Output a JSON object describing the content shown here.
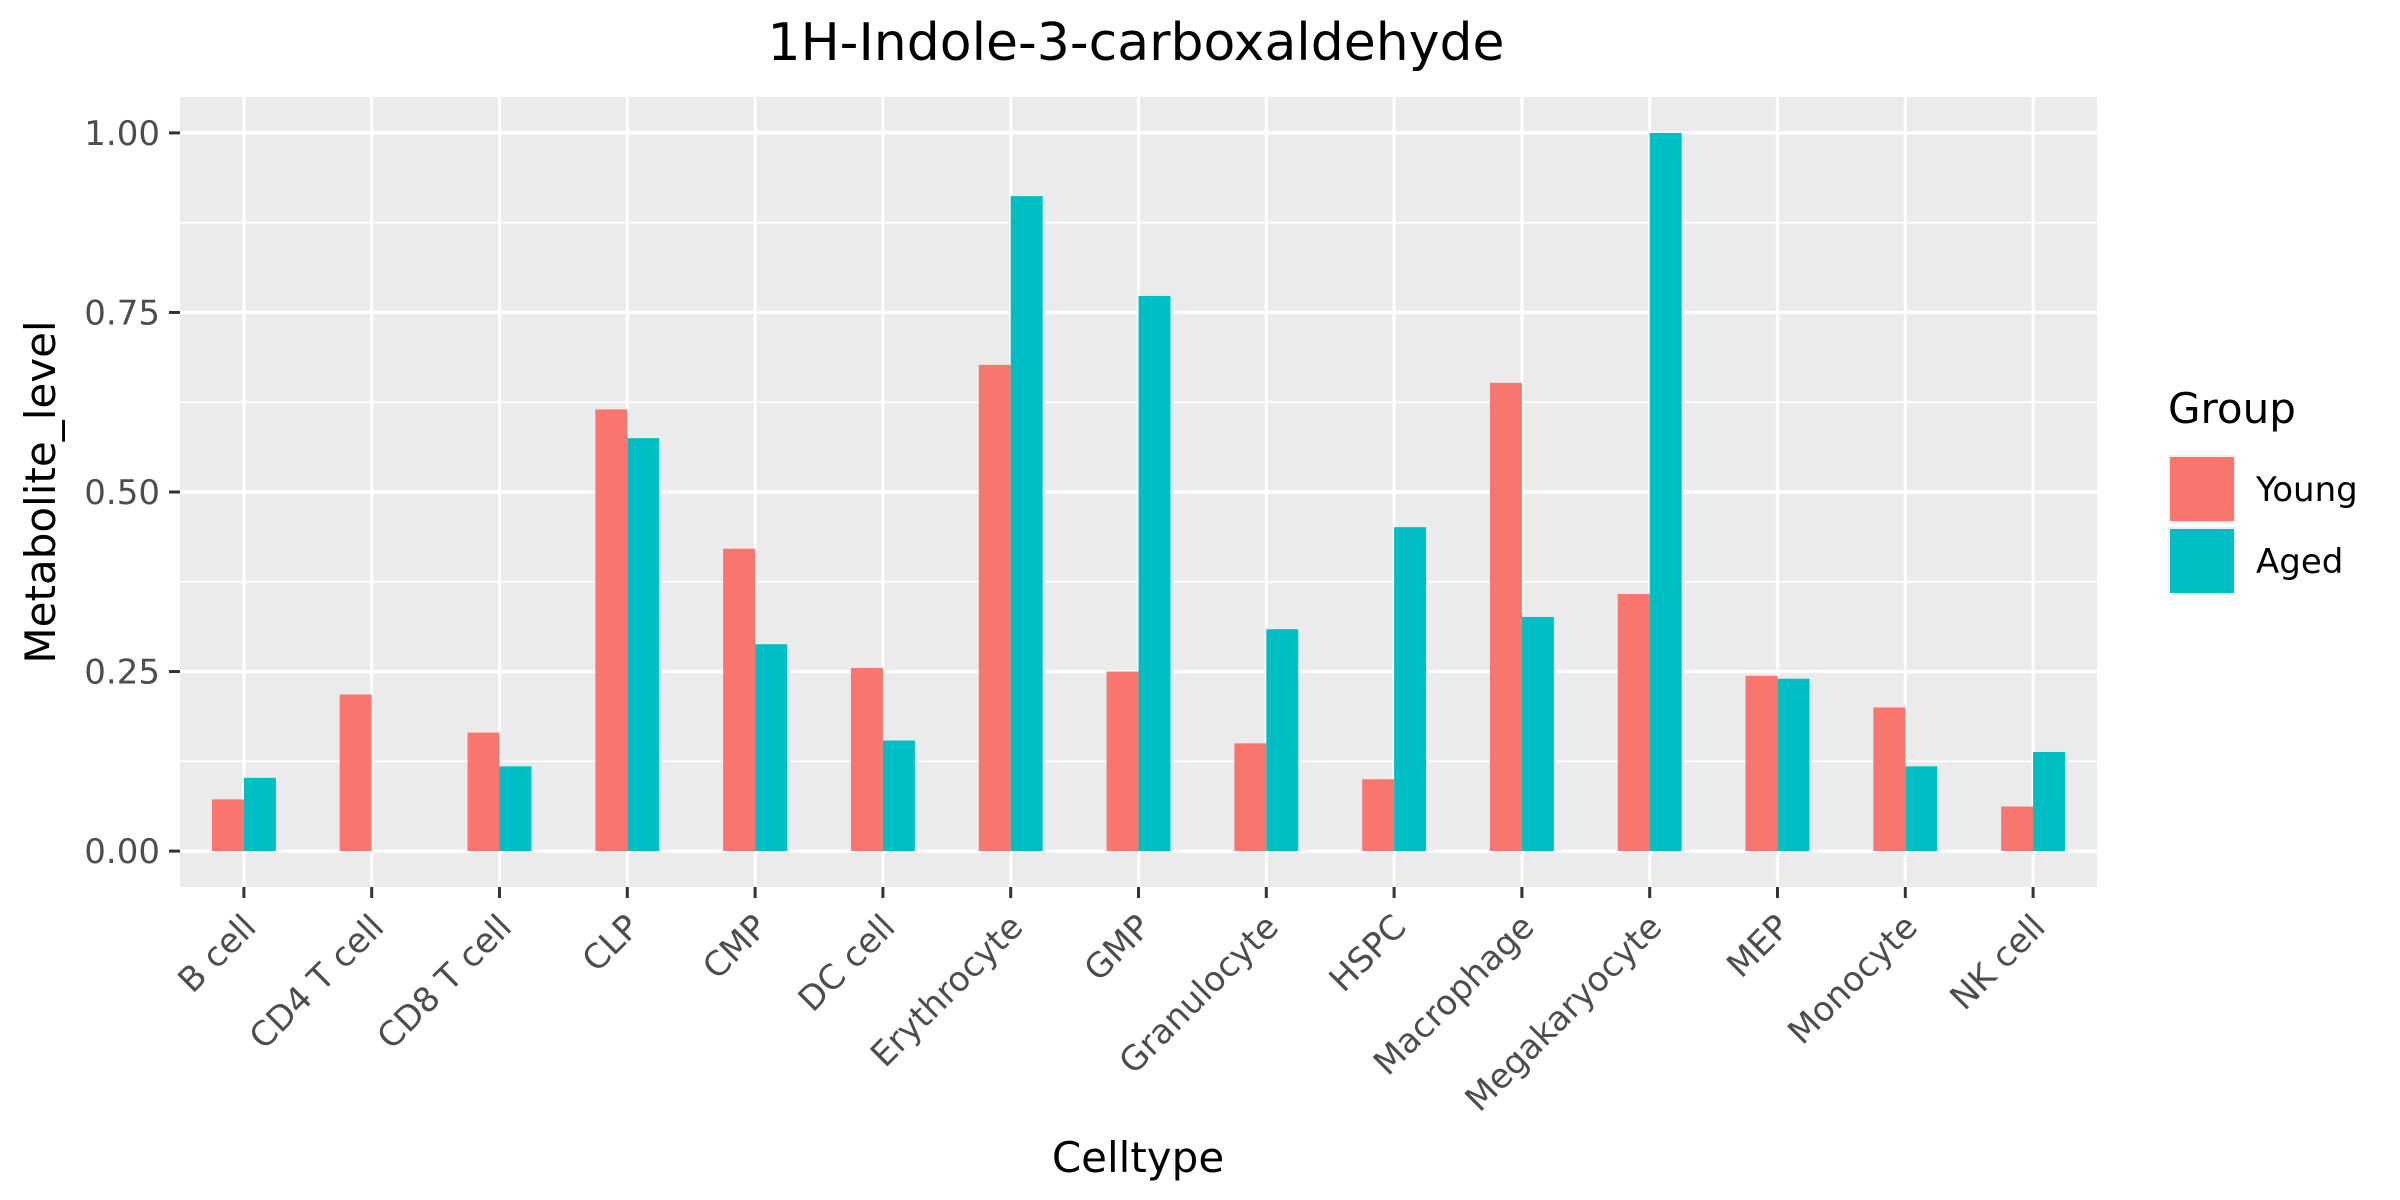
{
  "chart_data": {
    "type": "bar",
    "title": "1H-Indole-3-carboxaldehyde",
    "xlabel": "Celltype",
    "ylabel": "Metabolite_level",
    "categories": [
      "B cell",
      "CD4 T cell",
      "CD8 T cell",
      "CLP",
      "CMP",
      "DC cell",
      "Erythrocyte",
      "GMP",
      "Granulocyte",
      "HSPC",
      "Macrophage",
      "Megakaryocyte",
      "MEP",
      "Monocyte",
      "NK cell"
    ],
    "series": [
      {
        "name": "Young",
        "color": "#F8766D",
        "values": [
          0.072,
          0.218,
          0.165,
          0.615,
          0.421,
          0.255,
          0.677,
          0.25,
          0.15,
          0.1,
          0.652,
          0.358,
          0.244,
          0.2,
          0.062
        ]
      },
      {
        "name": "Aged",
        "color": "#00BFC4",
        "values": [
          0.102,
          null,
          0.118,
          0.575,
          0.288,
          0.154,
          0.912,
          0.773,
          0.309,
          0.451,
          0.326,
          1.0,
          0.24,
          0.118,
          0.138
        ]
      }
    ],
    "ylim": [
      -0.05,
      1.05
    ],
    "yticks": [
      0,
      0.25,
      0.5,
      0.75,
      1
    ],
    "ytick_labels": [
      "0.00",
      "0.25",
      "0.50",
      "0.75",
      "1.00"
    ],
    "grid": true,
    "legend": {
      "title": "Group",
      "position": "right"
    }
  }
}
